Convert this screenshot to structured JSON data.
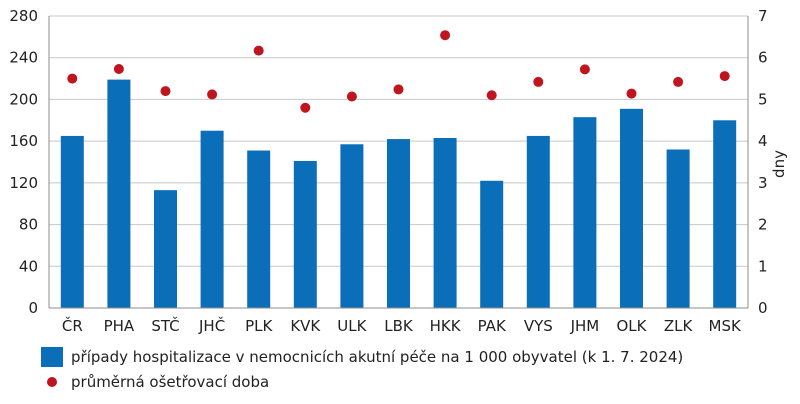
{
  "chart_data": {
    "type": "bar",
    "categories": [
      "ČR",
      "PHA",
      "STČ",
      "JHČ",
      "PLK",
      "KVK",
      "ULK",
      "LBK",
      "HKK",
      "PAK",
      "VYS",
      "JHM",
      "OLK",
      "ZLK",
      "MSK"
    ],
    "series": [
      {
        "name": "případy hospitalizace v nemocnicích akutní péče na 1 000 obyvatel (k 1. 7. 2024)",
        "type": "bar",
        "axis": "left",
        "values": [
          165,
          219,
          113,
          170,
          151,
          141,
          157,
          162,
          163,
          122,
          165,
          183,
          191,
          152,
          180
        ]
      },
      {
        "name": "průměrná ošetřovací doba",
        "type": "scatter",
        "axis": "right",
        "values": [
          5.5,
          5.73,
          5.2,
          5.12,
          6.17,
          4.8,
          5.07,
          5.24,
          6.54,
          5.1,
          5.42,
          5.72,
          5.14,
          5.42,
          5.56
        ]
      }
    ],
    "y_left": {
      "min": 0,
      "max": 280,
      "ticks": [
        "0",
        "40",
        "80",
        "120",
        "160",
        "200",
        "240",
        "280"
      ]
    },
    "y_right": {
      "min": 0,
      "max": 7,
      "label": "dny",
      "ticks": [
        "0",
        "1",
        "2",
        "3",
        "4",
        "5",
        "6",
        "7"
      ]
    },
    "grid": true,
    "legend_position": "bottom-left",
    "colors": {
      "bar": "#0a6fb8",
      "dot": "#c0141f",
      "grid": "#c8c8c8",
      "axis": "#8c8c8c"
    }
  }
}
